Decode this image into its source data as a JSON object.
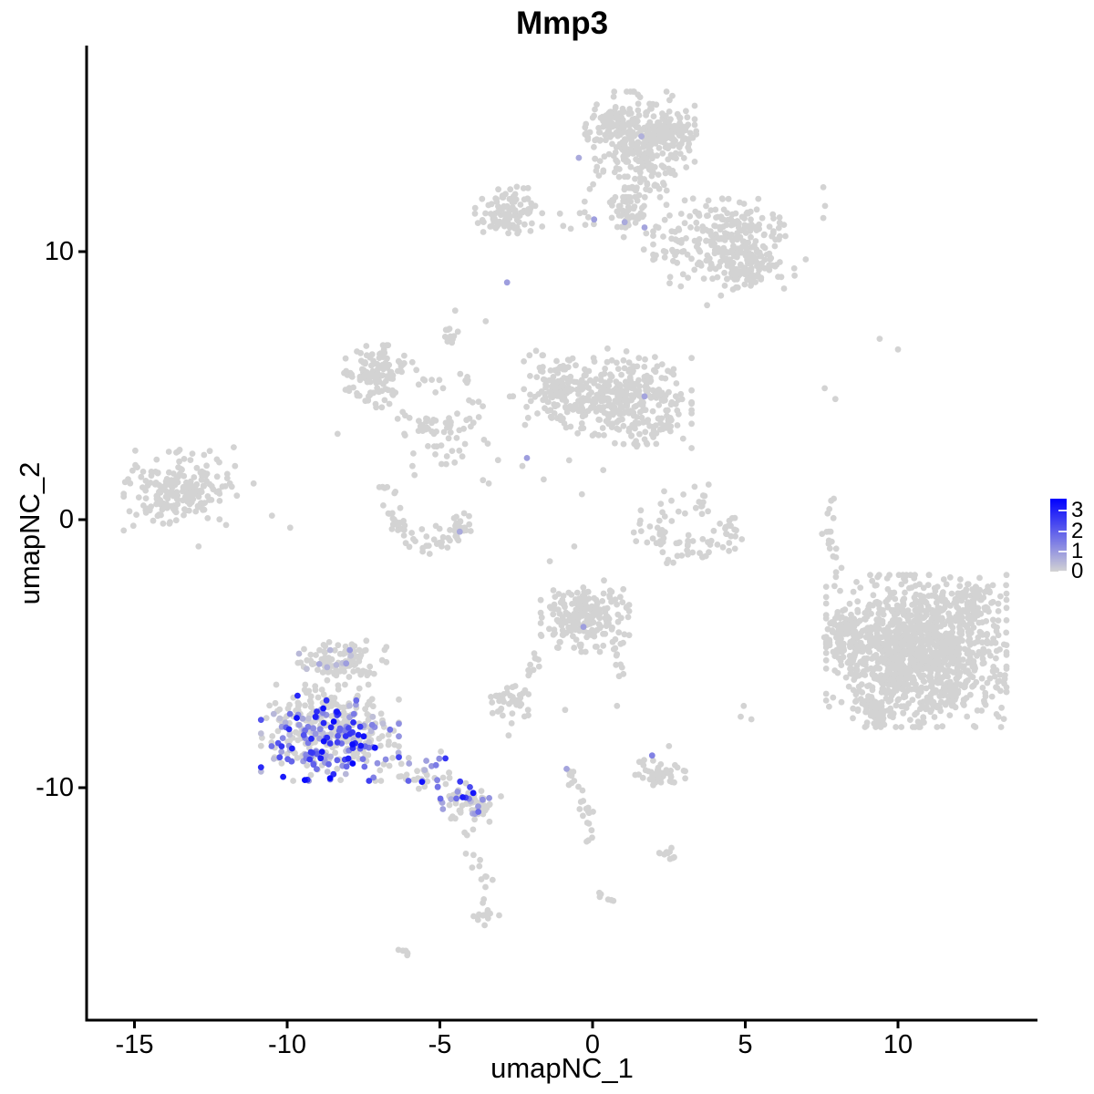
{
  "chart_data": {
    "type": "scatter",
    "title": "Mmp3",
    "xlabel": "umapNC_1",
    "ylabel": "umapNC_2",
    "x_ticks": [
      -15,
      -10,
      -5,
      0,
      5,
      10
    ],
    "y_ticks": [
      -10,
      0,
      10
    ],
    "x_range": [
      -16.5,
      14.6
    ],
    "y_range": [
      -18.7,
      17.8
    ],
    "grid": false,
    "legend_position": "right",
    "point_radius_px": 3.4,
    "colors": {
      "low": "#d3d3d3",
      "high": "#0000ff",
      "axis": "#000000",
      "background": "#ffffff"
    },
    "legend": {
      "tick_labels": [
        3,
        2,
        1,
        0
      ],
      "vmax": 3.6
    },
    "clusters": [
      {
        "name": "top-main",
        "shape": "blob",
        "cx": 1.55,
        "cy": 14.0,
        "rx": 1.55,
        "ry": 1.7,
        "n": 340
      },
      {
        "name": "top-main-nw",
        "shape": "blob",
        "cx": 0.55,
        "cy": 14.9,
        "rx": 0.55,
        "ry": 0.55,
        "n": 45
      },
      {
        "name": "top-main-ne",
        "shape": "blob",
        "cx": 2.7,
        "cy": 14.5,
        "rx": 0.6,
        "ry": 0.55,
        "n": 45
      },
      {
        "name": "top-funnel",
        "shape": "blob",
        "cx": 1.15,
        "cy": 11.55,
        "rx": 0.5,
        "ry": 0.95,
        "n": 55
      },
      {
        "name": "top-left-small",
        "shape": "blob",
        "cx": -2.75,
        "cy": 11.55,
        "rx": 0.95,
        "ry": 0.75,
        "n": 95
      },
      {
        "name": "top-bridge",
        "shape": "chain",
        "path": [
          [
            -3.3,
            11.1
          ],
          [
            -1.5,
            11.3
          ],
          [
            0.2,
            11.4
          ]
        ],
        "jitter": 0.22,
        "n": 16
      },
      {
        "name": "top-right-arm",
        "shape": "blob",
        "cx": 4.3,
        "cy": 10.3,
        "rx": 2.0,
        "ry": 1.45,
        "n": 230
      },
      {
        "name": "top-right-arm-dense",
        "shape": "blob",
        "cx": 5.0,
        "cy": 9.4,
        "rx": 0.95,
        "ry": 0.7,
        "n": 70
      },
      {
        "name": "top-right-fringe",
        "shape": "blob",
        "cx": 4.6,
        "cy": 10.2,
        "rx": 2.6,
        "ry": 1.9,
        "n": 45
      },
      {
        "name": "midleft-kidney",
        "shape": "blob",
        "cx": -7.15,
        "cy": 5.35,
        "rx": 0.85,
        "ry": 1.0,
        "n": 115
      },
      {
        "name": "midleft-arm",
        "shape": "chain",
        "path": [
          [
            -6.4,
            5.9
          ],
          [
            -5.6,
            5.4
          ],
          [
            -5.1,
            4.9
          ]
        ],
        "jitter": 0.18,
        "n": 13
      },
      {
        "name": "mid-clump",
        "shape": "blob",
        "cx": -4.65,
        "cy": 6.85,
        "rx": 0.3,
        "ry": 0.3,
        "n": 12
      },
      {
        "name": "mid-chain-diag",
        "shape": "chain",
        "path": [
          [
            -4.35,
            5.6
          ],
          [
            -4.05,
            4.9
          ],
          [
            -3.75,
            4.3
          ]
        ],
        "jitter": 0.12,
        "n": 9
      },
      {
        "name": "mid-arc",
        "shape": "chain",
        "path": [
          [
            -6.35,
            3.8
          ],
          [
            -5.3,
            3.35
          ],
          [
            -4.3,
            3.4
          ],
          [
            -3.55,
            3.6
          ]
        ],
        "jitter": 0.28,
        "n": 48
      },
      {
        "name": "mid-sparse",
        "shape": "blob",
        "cx": -4.6,
        "cy": 2.4,
        "rx": 1.3,
        "ry": 0.8,
        "n": 14
      },
      {
        "name": "central-left",
        "shape": "blob",
        "cx": -1.15,
        "cy": 4.8,
        "rx": 0.95,
        "ry": 1.15,
        "n": 125
      },
      {
        "name": "central-main",
        "shape": "blob",
        "cx": 1.1,
        "cy": 4.35,
        "rx": 1.85,
        "ry": 1.45,
        "n": 320
      },
      {
        "name": "central-fringe",
        "shape": "blob",
        "cx": 0.3,
        "cy": 4.3,
        "rx": 2.6,
        "ry": 1.8,
        "n": 40
      },
      {
        "name": "left-cluster",
        "shape": "blob",
        "cx": -13.5,
        "cy": 1.1,
        "rx": 1.6,
        "ry": 1.3,
        "n": 200
      },
      {
        "name": "left-outliers",
        "shape": "points",
        "pts": [
          [
            -11.75,
            2.7
          ],
          [
            -12.3,
            2.25
          ],
          [
            -11.1,
            1.35
          ],
          [
            -10.5,
            0.15
          ],
          [
            -9.9,
            -0.3
          ],
          [
            -12.0,
            -0.2
          ],
          [
            -12.9,
            -1.0
          ]
        ]
      },
      {
        "name": "crescent-right",
        "shape": "arc",
        "cx": 3.2,
        "cy": 0.45,
        "r": 1.6,
        "a0": 190,
        "a1": 345,
        "jitter": 0.26,
        "n": 70
      },
      {
        "name": "crescent-right-top",
        "shape": "blob",
        "cx": 3.05,
        "cy": 0.6,
        "rx": 0.75,
        "ry": 0.75,
        "n": 20
      },
      {
        "name": "crescent-left",
        "shape": "arc",
        "cx": -5.3,
        "cy": 0.55,
        "r": 1.3,
        "a0": 185,
        "a1": 340,
        "jitter": 0.24,
        "n": 68
      },
      {
        "name": "crescent-left-tailup",
        "shape": "chain",
        "path": [
          [
            -6.55,
            0.8
          ],
          [
            -6.8,
            1.4
          ]
        ],
        "jitter": 0.12,
        "n": 6
      },
      {
        "name": "right-chain",
        "shape": "chain",
        "path": [
          [
            7.75,
            1.3
          ],
          [
            7.9,
            0.3
          ],
          [
            7.6,
            -0.6
          ],
          [
            8.05,
            -1.5
          ],
          [
            7.9,
            -2.35
          ]
        ],
        "jitter": 0.12,
        "n": 18
      },
      {
        "name": "right-singles",
        "shape": "points",
        "pts": [
          [
            7.6,
            4.9
          ],
          [
            7.95,
            4.5
          ],
          [
            9.4,
            6.75
          ],
          [
            10.0,
            6.35
          ],
          [
            8.15,
            -1.8
          ]
        ]
      },
      {
        "name": "big-right",
        "shape": "blob",
        "cx": 10.6,
        "cy": -4.9,
        "rx": 2.55,
        "ry": 2.45,
        "n": 1200
      },
      {
        "name": "big-right-west",
        "shape": "blob",
        "cx": 8.4,
        "cy": -4.4,
        "rx": 0.7,
        "ry": 0.9,
        "n": 70
      },
      {
        "name": "big-right-sw",
        "shape": "blob",
        "cx": 9.3,
        "cy": -7.0,
        "rx": 0.85,
        "ry": 0.55,
        "n": 55
      },
      {
        "name": "big-right-ne",
        "shape": "blob",
        "cx": 12.4,
        "cy": -3.1,
        "rx": 0.8,
        "ry": 0.8,
        "n": 80
      },
      {
        "name": "center-bottom",
        "shape": "blob",
        "cx": -0.25,
        "cy": -3.6,
        "rx": 1.25,
        "ry": 1.15,
        "n": 210
      },
      {
        "name": "cb-arm-right",
        "shape": "chain",
        "path": [
          [
            0.6,
            -4.7
          ],
          [
            0.95,
            -5.5
          ],
          [
            1.15,
            -6.0
          ]
        ],
        "jitter": 0.1,
        "n": 9
      },
      {
        "name": "cb-arm-left",
        "shape": "chain",
        "path": [
          [
            -1.7,
            -4.8
          ],
          [
            -2.0,
            -5.6
          ],
          [
            -2.2,
            -6.4
          ]
        ],
        "jitter": 0.1,
        "n": 11
      },
      {
        "name": "small-left-bottom",
        "shape": "blob",
        "cx": -2.85,
        "cy": -6.75,
        "rx": 0.65,
        "ry": 0.55,
        "n": 40
      },
      {
        "name": "slb-stragglers",
        "shape": "points",
        "pts": [
          [
            -2.65,
            -7.6
          ],
          [
            -2.75,
            -8.05
          ],
          [
            -0.9,
            -7.1
          ]
        ]
      },
      {
        "name": "expr-top-knob",
        "shape": "blob",
        "cx": -8.2,
        "cy": -5.35,
        "rx": 1.25,
        "ry": 0.72,
        "n": 105,
        "expr": {
          "frac": 0.1,
          "vmin": 0.3,
          "vmax": 1.3
        }
      },
      {
        "name": "expr-main",
        "shape": "blob",
        "cx": -8.6,
        "cy": -7.95,
        "rx": 1.95,
        "ry": 1.55,
        "n": 420,
        "expr": {
          "frac": 0.75,
          "vmin": 0.3,
          "vmax": 3.5,
          "gradient": true
        }
      },
      {
        "name": "expr-tail",
        "shape": "chain",
        "path": [
          [
            -6.4,
            -8.8
          ],
          [
            -5.4,
            -9.5
          ],
          [
            -4.5,
            -10.2
          ],
          [
            -3.95,
            -10.7
          ]
        ],
        "jitter": 0.33,
        "n": 70,
        "expr": {
          "frac": 0.42,
          "vmin": 0.5,
          "vmax": 3.5
        }
      },
      {
        "name": "expr-end",
        "shape": "blob",
        "cx": -3.8,
        "cy": -10.7,
        "rx": 0.7,
        "ry": 0.5,
        "n": 42,
        "expr": {
          "frac": 0.22,
          "vmin": 0.4,
          "vmax": 2.2
        }
      },
      {
        "name": "below-tail-chain",
        "shape": "chain",
        "path": [
          [
            -4.25,
            -11.4
          ],
          [
            -4.05,
            -12.3
          ],
          [
            -3.65,
            -13.2
          ],
          [
            -3.5,
            -13.9
          ]
        ],
        "jitter": 0.13,
        "n": 13
      },
      {
        "name": "below-tail-blob",
        "shape": "blob",
        "cx": -3.5,
        "cy": -14.8,
        "rx": 0.38,
        "ry": 0.55,
        "n": 16
      },
      {
        "name": "left-dash",
        "shape": "chain",
        "path": [
          [
            -6.25,
            -16.0
          ],
          [
            -5.9,
            -16.3
          ]
        ],
        "jitter": 0.07,
        "n": 6
      },
      {
        "name": "s-chain",
        "shape": "chain",
        "path": [
          [
            -0.8,
            -9.4
          ],
          [
            -0.5,
            -10.1
          ],
          [
            -0.1,
            -10.9
          ],
          [
            -0.1,
            -11.7
          ],
          [
            -0.3,
            -12.3
          ]
        ],
        "jitter": 0.12,
        "n": 24
      },
      {
        "name": "small-right-bottom",
        "shape": "blob",
        "cx": 2.2,
        "cy": -9.55,
        "rx": 0.72,
        "ry": 0.5,
        "n": 46
      },
      {
        "name": "srb-blob2",
        "shape": "blob",
        "cx": 2.35,
        "cy": -12.4,
        "rx": 0.4,
        "ry": 0.3,
        "n": 11
      },
      {
        "name": "srb-dash",
        "shape": "chain",
        "path": [
          [
            0.3,
            -13.9
          ],
          [
            0.65,
            -14.2
          ]
        ],
        "jitter": 0.07,
        "n": 6
      },
      {
        "name": "right-pair",
        "shape": "points",
        "pts": [
          [
            4.95,
            -6.95
          ],
          [
            5.2,
            -7.45
          ],
          [
            4.85,
            -7.35
          ]
        ]
      },
      {
        "name": "mid-singles",
        "shape": "points",
        "pts": [
          [
            -2.3,
            2.0
          ],
          [
            -1.6,
            1.5
          ],
          [
            -0.35,
            0.95
          ],
          [
            0.35,
            1.85
          ],
          [
            -3.4,
            1.35
          ],
          [
            -5.9,
            2.0
          ],
          [
            -1.4,
            -1.55
          ],
          [
            -0.6,
            -1.0
          ],
          [
            2.55,
            3.3
          ],
          [
            -8.35,
            3.2
          ],
          [
            -3.5,
            7.4
          ],
          [
            -4.5,
            7.8
          ],
          [
            0.8,
            -6.95
          ],
          [
            2.5,
            -8.45
          ],
          [
            -1.85,
            6.3
          ]
        ]
      }
    ],
    "expressed_points": [
      [
        1.6,
        14.3,
        0.6
      ],
      [
        -0.45,
        13.5,
        0.7
      ],
      [
        0.05,
        11.2,
        0.9
      ],
      [
        1.05,
        11.1,
        0.7
      ],
      [
        1.7,
        10.9,
        0.8
      ],
      [
        -2.8,
        8.85,
        0.9
      ],
      [
        1.7,
        4.6,
        0.8
      ],
      [
        -2.15,
        2.3,
        0.9
      ],
      [
        -4.35,
        -0.45,
        0.7
      ],
      [
        -0.3,
        -4.0,
        0.9
      ],
      [
        -0.85,
        -9.3,
        0.8
      ],
      [
        1.95,
        -8.8,
        1.4
      ]
    ]
  }
}
